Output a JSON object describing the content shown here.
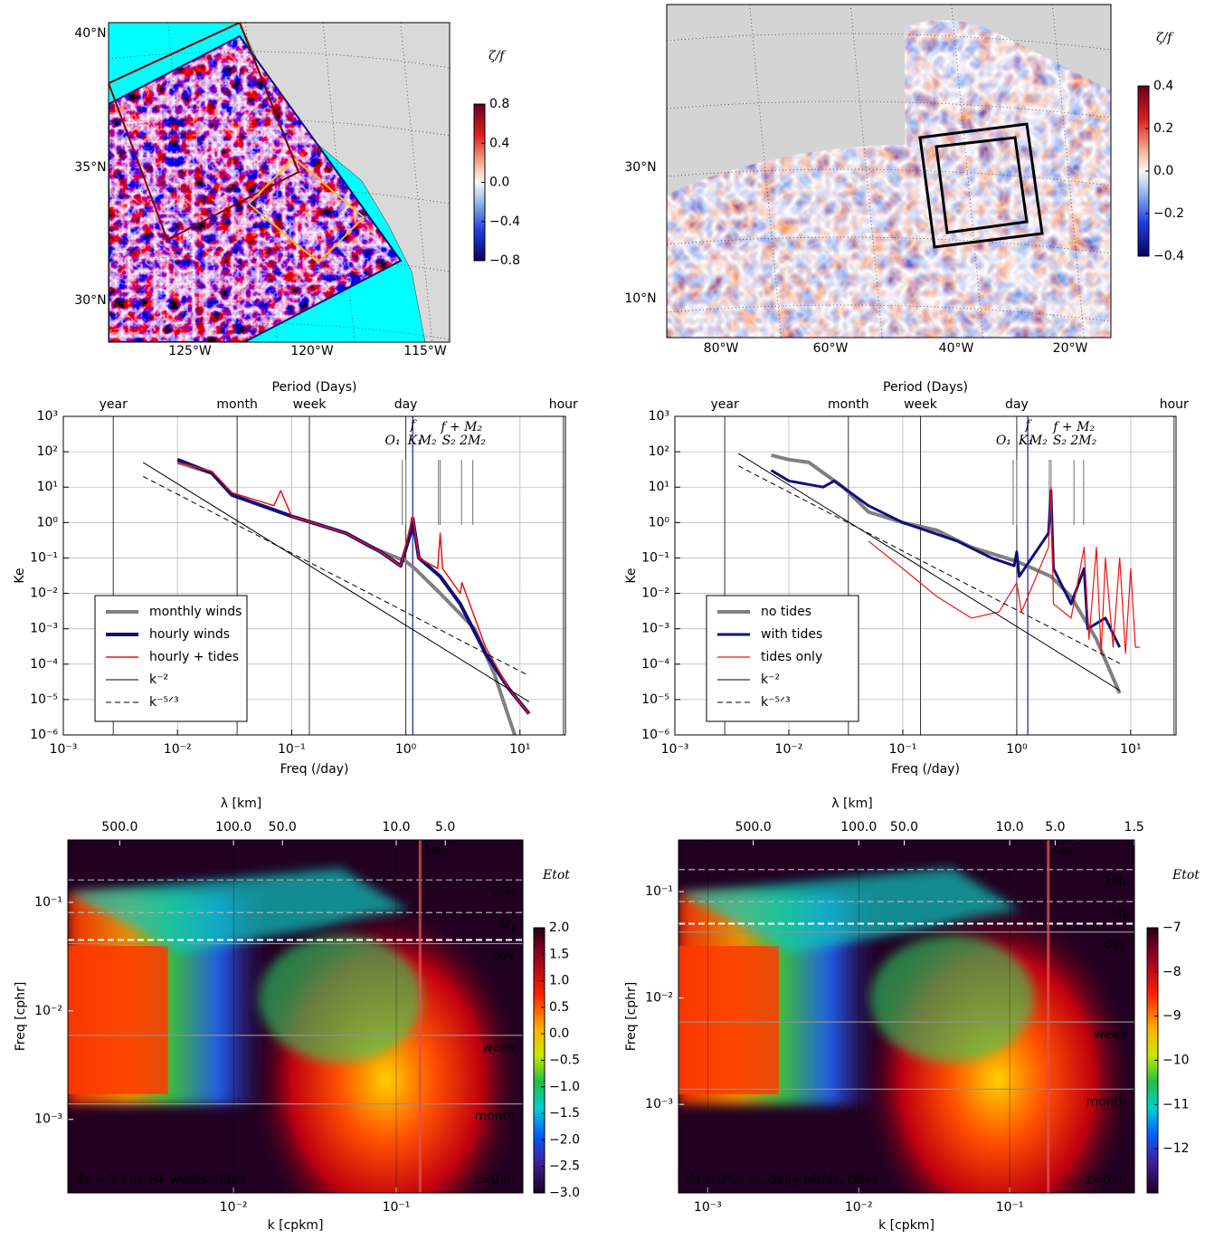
{
  "chart_data": [
    {
      "type": "map",
      "lat_labels": [
        "40°N",
        "35°N",
        "30°N"
      ],
      "lon_labels": [
        "125°W",
        "120°W",
        "115°W"
      ],
      "colorbar_label": "ζ/f",
      "clim": [
        -0.8,
        0.8
      ],
      "colorbar_ticks": [
        0.8,
        0.4,
        {
          "value": 0,
          "label": "0.0"
        },
        {
          "value": -0.4,
          "label": "−0.4"
        },
        {
          "value": -0.8,
          "label": "−0.8"
        }
      ]
    },
    {
      "type": "map",
      "lat_labels": [
        "30°N",
        "10°N"
      ],
      "lon_labels": [
        "80°W",
        "60°W",
        "40°W",
        "20°W"
      ],
      "colorbar_label": "ζ/f",
      "clim": [
        -0.4,
        0.4
      ],
      "colorbar_ticks": [
        0.4,
        0.2,
        {
          "value": 0,
          "label": "0.0"
        },
        {
          "value": -0.2,
          "label": "−0.2"
        },
        {
          "value": -0.4,
          "label": "−0.4"
        }
      ]
    },
    {
      "type": "line",
      "xlabel": "Freq (/day)",
      "ylabel": "Ke",
      "top_label": "Period (Days)",
      "log_x": true,
      "log_y": true,
      "xlim": [
        0.001,
        25
      ],
      "ylim": [
        1e-06,
        1000
      ],
      "xticks": [
        {
          "value": 0.001,
          "label": "10⁻³"
        },
        {
          "value": 0.01,
          "label": "10⁻²"
        },
        {
          "value": 0.1,
          "label": "10⁻¹"
        },
        {
          "value": 1,
          "label": "10⁰"
        },
        {
          "value": 10,
          "label": "10¹"
        }
      ],
      "yticks": [
        {
          "value": 1e-06,
          "label": "10⁻⁶"
        },
        {
          "value": 1e-05,
          "label": "10⁻⁵"
        },
        {
          "value": 0.0001,
          "label": "10⁻⁴"
        },
        {
          "value": 0.001,
          "label": "10⁻³"
        },
        {
          "value": 0.01,
          "label": "10⁻²"
        },
        {
          "value": 0.1,
          "label": "10⁻¹"
        },
        {
          "value": 1,
          "label": "10⁰"
        },
        {
          "value": 10,
          "label": "10¹"
        },
        {
          "value": 100,
          "label": "10²"
        },
        {
          "value": 1000,
          "label": "10³"
        }
      ],
      "top_ticks": [
        {
          "value": 0.00274,
          "label": "year"
        },
        {
          "value": 0.0333,
          "label": "month"
        },
        {
          "value": 0.143,
          "label": "week"
        },
        {
          "value": 1,
          "label": "day"
        },
        {
          "value": 24,
          "label": "hour"
        }
      ],
      "grid": true,
      "legend": "lower left",
      "annotations": [
        {
          "label": "f",
          "value": 1.15,
          "color": "#1a1a9c"
        },
        {
          "label": "O₁",
          "value": 0.93,
          "color": "#888888"
        },
        {
          "label": "K₁",
          "value": 1.0,
          "color": "#888888"
        },
        {
          "label": "M₂",
          "value": 1.93,
          "color": "#888888"
        },
        {
          "label": "S₂",
          "value": 2.0,
          "color": "#888888"
        },
        {
          "label": "f + M₂",
          "value": 3.08,
          "color": "#888888"
        },
        {
          "label": "2M₂",
          "value": 3.86,
          "color": "#888888"
        }
      ],
      "series": [
        {
          "name": "monthly winds",
          "color": "#808080",
          "width": 4,
          "x": [
            0.01,
            0.02,
            0.03,
            0.1,
            0.3,
            0.5,
            1,
            1.2,
            2,
            4,
            6,
            8,
            9
          ],
          "values": [
            50,
            25,
            6,
            1.5,
            0.5,
            0.2,
            0.08,
            0.05,
            0.01,
            0.001,
            5e-05,
            3e-06,
            1e-06
          ]
        },
        {
          "name": "hourly winds",
          "color": "#10107a",
          "width": 4,
          "x": [
            0.01,
            0.02,
            0.03,
            0.1,
            0.3,
            0.6,
            0.9,
            1.1,
            1.15,
            1.3,
            2,
            3,
            5,
            8,
            12
          ],
          "values": [
            60,
            25,
            6,
            1.5,
            0.5,
            0.15,
            0.06,
            0.5,
            1.3,
            0.1,
            0.03,
            0.005,
            0.0002,
            2e-05,
            4e-06
          ]
        },
        {
          "name": "hourly + tides",
          "color": "#ee1111",
          "width": 1.5,
          "x": [
            0.01,
            0.02,
            0.03,
            0.07,
            0.08,
            0.1,
            0.3,
            0.6,
            0.9,
            1.15,
            1.3,
            1.9,
            2,
            2.1,
            3,
            3.1,
            5,
            8,
            12
          ],
          "values": [
            50,
            28,
            7,
            3,
            8,
            1.5,
            0.5,
            0.15,
            0.06,
            1.5,
            0.1,
            0.05,
            0.5,
            0.05,
            0.01,
            0.02,
            0.0003,
            2e-05,
            4e-06
          ]
        },
        {
          "name": "k⁻²",
          "color": "#000000",
          "width": 1,
          "x": [
            0.005,
            12
          ],
          "values": [
            50,
            8.7e-06
          ]
        },
        {
          "name": "k⁻⁵ᐟ³",
          "color": "#000000",
          "width": 1,
          "dash": true,
          "x": [
            0.005,
            12
          ],
          "values": [
            20,
            4.7e-05
          ]
        }
      ]
    },
    {
      "type": "line",
      "xlabel": "Freq (/day)",
      "ylabel": "Ke",
      "top_label": "Period (Days)",
      "log_x": true,
      "log_y": true,
      "xlim": [
        0.001,
        25
      ],
      "ylim": [
        1e-06,
        1000
      ],
      "xticks": [
        {
          "value": 0.001,
          "label": "10⁻³"
        },
        {
          "value": 0.01,
          "label": "10⁻²"
        },
        {
          "value": 0.1,
          "label": "10⁻¹"
        },
        {
          "value": 1,
          "label": "10⁰"
        },
        {
          "value": 10,
          "label": "10¹"
        }
      ],
      "yticks": [
        {
          "value": 1e-06,
          "label": "10⁻⁶"
        },
        {
          "value": 1e-05,
          "label": "10⁻⁵"
        },
        {
          "value": 0.0001,
          "label": "10⁻⁴"
        },
        {
          "value": 0.001,
          "label": "10⁻³"
        },
        {
          "value": 0.01,
          "label": "10⁻²"
        },
        {
          "value": 0.1,
          "label": "10⁻¹"
        },
        {
          "value": 1,
          "label": "10⁰"
        },
        {
          "value": 10,
          "label": "10¹"
        },
        {
          "value": 100,
          "label": "10²"
        },
        {
          "value": 1000,
          "label": "10³"
        }
      ],
      "top_ticks": [
        {
          "value": 0.00274,
          "label": "year"
        },
        {
          "value": 0.0333,
          "label": "month"
        },
        {
          "value": 0.143,
          "label": "week"
        },
        {
          "value": 1,
          "label": "day"
        },
        {
          "value": 24,
          "label": "hour"
        }
      ],
      "grid": true,
      "legend": "lower left",
      "annotations": [
        {
          "label": "f",
          "value": 1.25,
          "color": "#1a1a9c"
        },
        {
          "label": "O₁",
          "value": 0.93,
          "color": "#888888"
        },
        {
          "label": "K₁",
          "value": 1.0,
          "color": "#888888"
        },
        {
          "label": "M₂",
          "value": 1.93,
          "color": "#888888"
        },
        {
          "label": "S₂",
          "value": 2.0,
          "color": "#888888"
        },
        {
          "label": "f + M₂",
          "value": 3.18,
          "color": "#888888"
        },
        {
          "label": "2M₂",
          "value": 3.86,
          "color": "#888888"
        }
      ],
      "series": [
        {
          "name": "no tides",
          "color": "#808080",
          "width": 4,
          "x": [
            0.007,
            0.01,
            0.015,
            0.03,
            0.05,
            0.1,
            0.2,
            0.4,
            1,
            2,
            3,
            5,
            8
          ],
          "values": [
            80,
            60,
            50,
            10,
            2,
            1,
            0.6,
            0.2,
            0.08,
            0.03,
            0.008,
            0.0005,
            1.5e-05
          ]
        },
        {
          "name": "with tides",
          "color": "#10107a",
          "width": 3,
          "x": [
            0.007,
            0.01,
            0.02,
            0.025,
            0.05,
            0.1,
            0.3,
            0.6,
            0.95,
            1.0,
            1.05,
            1.9,
            2.0,
            2.1,
            3,
            3.9,
            4.2,
            6,
            8
          ],
          "values": [
            30,
            15,
            10,
            15,
            3,
            1,
            0.3,
            0.1,
            0.06,
            0.15,
            0.03,
            0.5,
            8,
            0.05,
            0.005,
            0.05,
            0.001,
            0.002,
            0.0003
          ]
        },
        {
          "name": "tides only",
          "color": "#ee1111",
          "width": 1.2,
          "x": [
            0.05,
            0.1,
            0.2,
            0.4,
            0.7,
            1.0,
            1.1,
            1.9,
            2.0,
            2.1,
            3,
            3.9,
            4.3,
            5,
            5.5,
            6,
            7,
            8,
            9,
            10,
            11,
            12
          ],
          "values": [
            0.3,
            0.05,
            0.008,
            0.002,
            0.003,
            0.02,
            0.003,
            0.2,
            10,
            0.005,
            0.002,
            0.2,
            0.0005,
            0.2,
            0.0002,
            0.1,
            0.0003,
            0.1,
            0.0002,
            0.05,
            0.0003,
            0.0003
          ]
        },
        {
          "name": "k⁻²",
          "color": "#000000",
          "width": 1,
          "x": [
            0.0036,
            8
          ],
          "values": [
            90,
            1.8e-05
          ]
        },
        {
          "name": "k⁻⁵ᐟ³",
          "color": "#000000",
          "width": 1,
          "dash": true,
          "x": [
            0.0036,
            8
          ],
          "values": [
            40,
            0.000105
          ]
        }
      ]
    },
    {
      "type": "heatmap",
      "xlabel": "k [cpkm]",
      "ylabel": "Freq [cphr]",
      "top_label": "λ [km]",
      "log_x": true,
      "log_y": true,
      "xlim": [
        0.00096,
        0.6
      ],
      "ylim": [
        0.00021,
        0.376
      ],
      "xticks": [
        {
          "value": 0.01,
          "label": "10⁻²"
        },
        {
          "value": 0.1,
          "label": "10⁻¹"
        }
      ],
      "yticks": [
        {
          "value": 0.001,
          "label": "10⁻³"
        },
        {
          "value": 0.01,
          "label": "10⁻²"
        },
        {
          "value": 0.1,
          "label": "10⁻¹"
        }
      ],
      "top_ticks": [
        {
          "value": 0.002,
          "label": "500.0"
        },
        {
          "value": 0.01,
          "label": "100.0"
        },
        {
          "value": 0.02,
          "label": "50.0"
        },
        {
          "value": 0.1,
          "label": "10.0"
        },
        {
          "value": 0.2,
          "label": "5.0"
        }
      ],
      "colorbar_label": "Etot",
      "clim": [
        -3,
        2
      ],
      "colorbar_ticks": [
        {
          "value": 2,
          "label": "2.0"
        },
        1.5,
        {
          "value": 1,
          "label": "1.0"
        },
        0.5,
        {
          "value": 0,
          "label": "0.0"
        },
        {
          "value": -0.5,
          "label": "−0.5"
        },
        {
          "value": -1,
          "label": "−1.0"
        },
        {
          "value": -1.5,
          "label": "−1.5"
        },
        {
          "value": -2,
          "label": "−2.0"
        },
        {
          "value": -2.5,
          "label": "−2.5"
        },
        {
          "value": -3,
          "label": "−3.0"
        }
      ],
      "hlines": [
        {
          "label": "2M₂",
          "value": 0.161,
          "color": "#b0b0b0"
        },
        {
          "label": "M₂",
          "value": 0.0805,
          "color": "#b0b0b0"
        },
        {
          "label": "f",
          "value": 0.045,
          "color": "#ffffff"
        },
        {
          "label": "day",
          "value": 0.0417,
          "color": "#909090"
        },
        {
          "label": "week",
          "value": 0.00595,
          "color": "#909090"
        },
        {
          "label": "month",
          "value": 0.00139,
          "color": "#909090"
        }
      ],
      "sdr": {
        "label": "λsdr",
        "value": 0.14
      },
      "note": "dx = 1 km, HF winds, tides",
      "depth": "z=0 m"
    },
    {
      "type": "heatmap",
      "xlabel": "k [cpkm]",
      "ylabel": "Freq [cphr]",
      "top_label": "λ [km]",
      "log_x": true,
      "log_y": true,
      "xlim": [
        0.00064,
        0.67
      ],
      "ylim": [
        0.000147,
        0.306
      ],
      "xticks": [
        {
          "value": 0.001,
          "label": "10⁻³"
        },
        {
          "value": 0.01,
          "label": "10⁻²"
        },
        {
          "value": 0.1,
          "label": "10⁻¹"
        }
      ],
      "yticks": [
        {
          "value": 0.001,
          "label": "10⁻³"
        },
        {
          "value": 0.01,
          "label": "10⁻²"
        },
        {
          "value": 0.1,
          "label": "10⁻¹"
        }
      ],
      "top_ticks": [
        {
          "value": 0.002,
          "label": "500.0"
        },
        {
          "value": 0.01,
          "label": "100.0"
        },
        {
          "value": 0.02,
          "label": "50.0"
        },
        {
          "value": 0.1,
          "label": "10.0"
        },
        {
          "value": 0.2,
          "label": "5.0"
        },
        {
          "value": 0.667,
          "label": "1.5"
        }
      ],
      "colorbar_label": "Etot",
      "clim": [
        -13,
        -7
      ],
      "colorbar_ticks": [
        {
          "value": -7,
          "label": "−7"
        },
        {
          "value": -8,
          "label": "−8"
        },
        {
          "value": -9,
          "label": "−9"
        },
        {
          "value": -10,
          "label": "−10"
        },
        {
          "value": -11,
          "label": "−11"
        },
        {
          "value": -12,
          "label": "−12"
        }
      ],
      "hlines": [
        {
          "label": "2M₂",
          "value": 0.161,
          "color": "#b0b0b0"
        },
        {
          "label": "M₂",
          "value": 0.0805,
          "color": "#b0b0b0"
        },
        {
          "label": "f",
          "value": 0.05,
          "color": "#ffffff"
        },
        {
          "label": "day",
          "value": 0.0417,
          "color": "#909090"
        },
        {
          "label": "week",
          "value": 0.00595,
          "color": "#909090"
        },
        {
          "label": "month",
          "value": 0.00139,
          "color": "#909090"
        }
      ],
      "sdr": {
        "label": "λsdr",
        "value": 0.18
      },
      "note": "dx = 750 m, daily winds, tides",
      "depth": "z=0 m"
    }
  ]
}
